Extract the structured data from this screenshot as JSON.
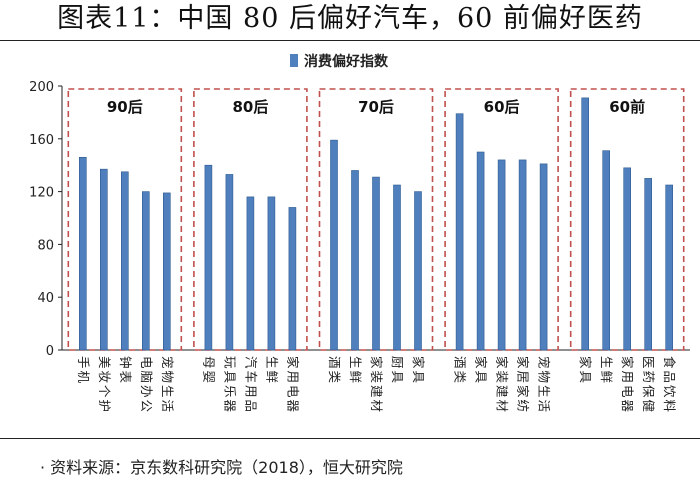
{
  "title": "图表11：中国 80 后偏好汽车，60 前偏好医药",
  "source": "· 资料来源：京东数科研究院（2018），恒大研究院",
  "colors": {
    "bar": "#4f7fbd",
    "bar_dark": "#2e5a8f",
    "group_box": "#c0504d",
    "axis": "#222222"
  },
  "chart_data": {
    "type": "bar",
    "legend": "消费偏好指数",
    "ylim": [
      0,
      200
    ],
    "yticks": [
      0,
      40,
      80,
      120,
      160,
      200
    ],
    "groups": [
      {
        "name": "90后",
        "categories": [
          "手机",
          "美妆个护",
          "钟表",
          "电脑办公",
          "宠物生活"
        ],
        "values": [
          146,
          137,
          135,
          120,
          119
        ]
      },
      {
        "name": "80后",
        "categories": [
          "母婴",
          "玩具乐器",
          "汽车用品",
          "生鲜",
          "家用电器"
        ],
        "values": [
          140,
          133,
          116,
          116,
          108
        ]
      },
      {
        "name": "70后",
        "categories": [
          "酒类",
          "生鲜",
          "家装建材",
          "厨具",
          "家具"
        ],
        "values": [
          159,
          136,
          131,
          125,
          120
        ]
      },
      {
        "name": "60后",
        "categories": [
          "酒类",
          "家具",
          "家装建材",
          "家居家纺",
          "宠物生活"
        ],
        "values": [
          179,
          150,
          144,
          144,
          141
        ]
      },
      {
        "name": "60前",
        "categories": [
          "家具",
          "生鲜",
          "家用电器",
          "医药保健",
          "食品饮料"
        ],
        "values": [
          191,
          151,
          138,
          130,
          125
        ]
      }
    ]
  }
}
